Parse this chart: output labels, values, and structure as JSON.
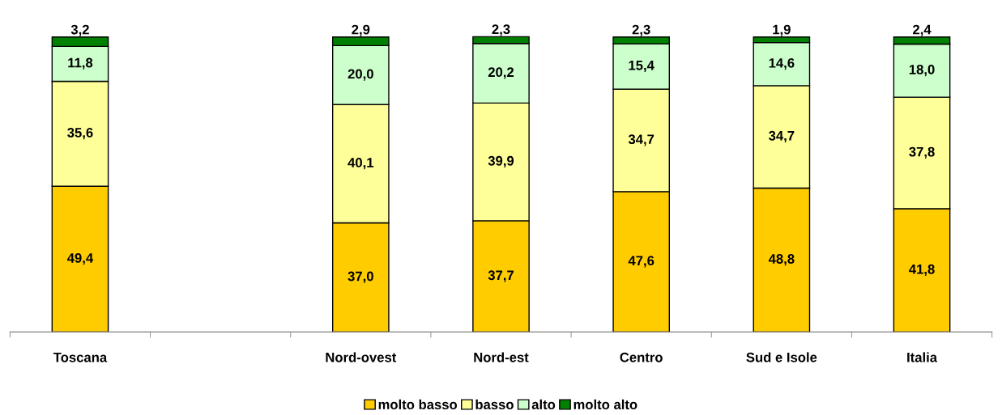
{
  "chart_data": {
    "type": "bar",
    "stacked": true,
    "legend": "bottom",
    "grid": false,
    "categories": [
      "Toscana",
      null,
      "Nord-ovest",
      "Nord-est",
      "Centro",
      "Sud e Isole",
      "Italia"
    ],
    "series": [
      {
        "name": "molto basso",
        "color": "#ffcc00",
        "values": [
          49.4,
          null,
          37.0,
          37.7,
          47.6,
          48.8,
          41.8
        ],
        "value_labels": [
          "49,4",
          null,
          "37,0",
          "37,7",
          "47,6",
          "48,8",
          "41,8"
        ]
      },
      {
        "name": "basso",
        "color": "#ffff99",
        "values": [
          35.6,
          null,
          40.1,
          39.9,
          34.7,
          34.7,
          37.8
        ],
        "value_labels": [
          "35,6",
          null,
          "40,1",
          "39,9",
          "34,7",
          "34,7",
          "37,8"
        ]
      },
      {
        "name": "alto",
        "color": "#ccffcc",
        "values": [
          11.8,
          null,
          20.0,
          20.2,
          15.4,
          14.6,
          18.0
        ],
        "value_labels": [
          "11,8",
          null,
          "20,0",
          "20,2",
          "15,4",
          "14,6",
          "18,0"
        ]
      },
      {
        "name": "molto alto",
        "color": "#008000",
        "values": [
          3.2,
          null,
          2.9,
          2.3,
          2.3,
          1.9,
          2.4
        ],
        "value_labels": [
          "3,2",
          null,
          "2,9",
          "2,3",
          "2,3",
          "1,9",
          "2,4"
        ]
      }
    ]
  }
}
